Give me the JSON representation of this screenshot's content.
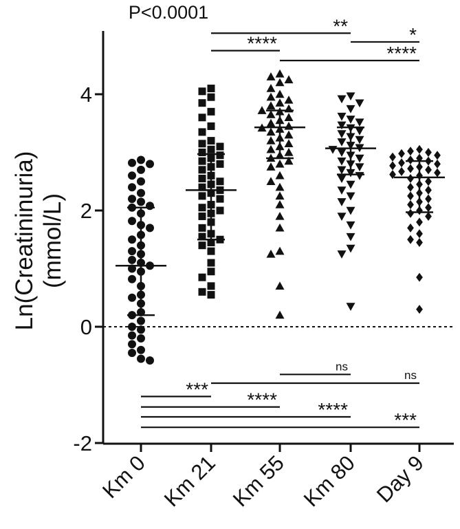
{
  "chart_data": {
    "type": "scatter",
    "title": "P<0.0001",
    "ylabel_line1": "Ln(Creatininuria)",
    "ylabel_line2": "(mmol/L)",
    "xlabel": "",
    "ylim": [
      -2,
      5
    ],
    "yticks": [
      -2,
      0,
      2,
      4
    ],
    "ytick_labels": [
      "-2",
      "0",
      "2",
      "4"
    ],
    "categories": [
      "Km 0",
      "Km 21",
      "Km 55",
      "Km 80",
      "Day 9"
    ],
    "reference_line": 0,
    "series": [
      {
        "category": "Km 0",
        "marker": "circle",
        "mean": 1.05,
        "sd_low": 0.2,
        "sd_high": 2.05,
        "values": [
          2.87,
          2.82,
          2.8,
          2.7,
          2.6,
          2.5,
          2.4,
          2.3,
          2.2,
          2.15,
          2.08,
          2.05,
          1.95,
          1.82,
          1.75,
          1.7,
          1.58,
          1.5,
          1.4,
          1.3,
          1.25,
          1.15,
          1.1,
          1.05,
          1.0,
          0.95,
          0.82,
          0.7,
          0.55,
          0.5,
          0.4,
          0.25,
          0.2,
          0.1,
          0.0,
          -0.05,
          -0.15,
          -0.2,
          -0.3,
          -0.4,
          -0.45,
          -0.55,
          -0.58
        ]
      },
      {
        "category": "Km 21",
        "marker": "square",
        "mean": 2.35,
        "sd_low": 1.5,
        "sd_high": 2.97,
        "values": [
          4.1,
          4.05,
          3.95,
          3.85,
          3.7,
          3.6,
          3.45,
          3.35,
          3.2,
          3.15,
          3.1,
          3.05,
          3.0,
          2.95,
          2.9,
          2.85,
          2.8,
          2.75,
          2.7,
          2.6,
          2.55,
          2.5,
          2.45,
          2.4,
          2.35,
          2.3,
          2.25,
          2.2,
          2.1,
          2.05,
          2.0,
          1.95,
          1.9,
          1.8,
          1.7,
          1.6,
          1.55,
          1.5,
          1.45,
          1.4,
          1.3,
          1.1,
          0.95,
          0.85,
          0.7,
          0.6,
          0.55
        ]
      },
      {
        "category": "Km 55",
        "marker": "triangle-up",
        "mean": 3.43,
        "sd_low": 2.9,
        "sd_high": 3.72,
        "values": [
          4.35,
          4.3,
          4.25,
          4.2,
          4.1,
          4.0,
          3.95,
          3.9,
          3.85,
          3.8,
          3.75,
          3.72,
          3.7,
          3.65,
          3.6,
          3.55,
          3.5,
          3.45,
          3.42,
          3.4,
          3.35,
          3.3,
          3.25,
          3.2,
          3.15,
          3.1,
          3.05,
          3.0,
          2.95,
          2.9,
          2.85,
          2.8,
          2.75,
          2.6,
          2.5,
          2.4,
          2.25,
          2.1,
          1.9,
          1.7,
          1.3,
          1.25,
          0.7,
          0.2
        ]
      },
      {
        "category": "Km 80",
        "marker": "triangle-down",
        "mean": 3.07,
        "sd_low": 2.62,
        "sd_high": 3.43,
        "values": [
          3.97,
          3.92,
          3.85,
          3.75,
          3.62,
          3.57,
          3.52,
          3.47,
          3.42,
          3.37,
          3.32,
          3.27,
          3.22,
          3.18,
          3.12,
          3.08,
          3.05,
          3.0,
          2.95,
          2.9,
          2.85,
          2.8,
          2.75,
          2.7,
          2.65,
          2.6,
          2.55,
          2.45,
          2.35,
          2.25,
          2.15,
          2.0,
          1.9,
          1.75,
          1.55,
          1.35,
          1.25,
          0.35
        ]
      },
      {
        "category": "Day 9",
        "marker": "diamond",
        "mean": 2.57,
        "sd_low": 1.97,
        "sd_high": 2.85,
        "values": [
          3.05,
          3.02,
          3.0,
          2.98,
          2.95,
          2.92,
          2.9,
          2.87,
          2.85,
          2.82,
          2.8,
          2.77,
          2.75,
          2.72,
          2.7,
          2.67,
          2.65,
          2.62,
          2.6,
          2.55,
          2.5,
          2.45,
          2.4,
          2.35,
          2.3,
          2.25,
          2.2,
          2.15,
          2.1,
          2.05,
          2.0,
          1.95,
          1.9,
          1.8,
          1.7,
          1.6,
          1.5,
          1.45,
          0.85,
          0.3
        ]
      }
    ],
    "comparisons": [
      {
        "from": "Km 21",
        "to": "Km 80",
        "y": 5.05,
        "label": "**"
      },
      {
        "from": "Km 80",
        "to": "Day 9",
        "y": 4.9,
        "label": "*"
      },
      {
        "from": "Km 21",
        "to": "Km 55",
        "y": 4.75,
        "label": "****"
      },
      {
        "from": "Km 55",
        "to": "Day 9",
        "y": 4.58,
        "label": "****"
      },
      {
        "from": "Km 55",
        "to": "Km 80",
        "y": -0.82,
        "label": "ns"
      },
      {
        "from": "Km 21",
        "to": "Day 9",
        "y": -0.97,
        "label": "ns"
      },
      {
        "from": "Km 0",
        "to": "Km 21",
        "y": -1.2,
        "label": "***"
      },
      {
        "from": "Km 0",
        "to": "Km 55",
        "y": -1.38,
        "label": "****"
      },
      {
        "from": "Km 0",
        "to": "Km 80",
        "y": -1.55,
        "label": "****"
      },
      {
        "from": "Km 0",
        "to": "Day 9",
        "y": -1.73,
        "label": "***"
      }
    ]
  }
}
